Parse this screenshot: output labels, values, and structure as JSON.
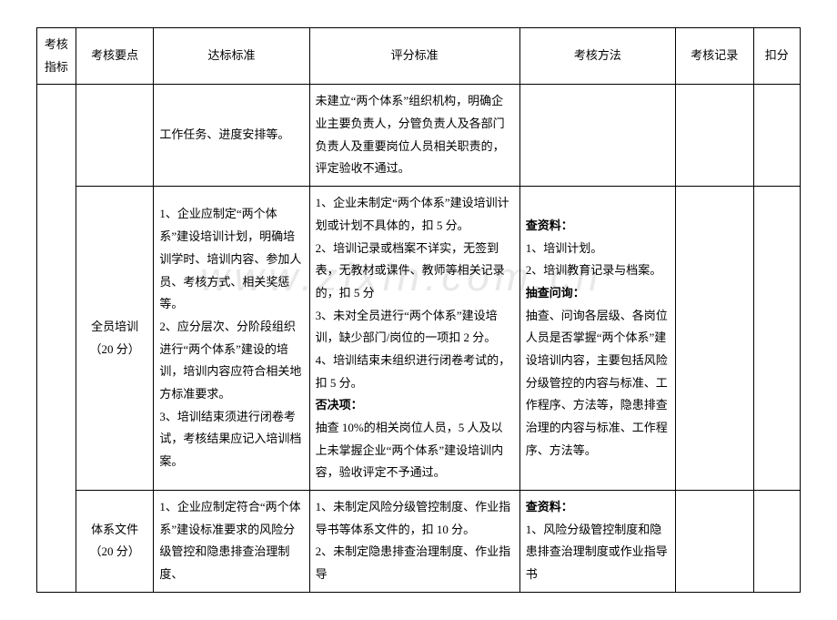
{
  "watermark": "www.zixin.com.cn",
  "columns": {
    "c1": "考核\n指标",
    "c2": "考核要点",
    "c3": "达标标准",
    "c4": "评分标准",
    "c5": "考核方法",
    "c6": "考核记录",
    "c7": "扣分"
  },
  "widths": {
    "c1": "5%",
    "c2": "10%",
    "c3": "20%",
    "c4": "27%",
    "c5": "20%",
    "c6": "10%",
    "c7": "6%"
  },
  "rows": [
    {
      "c2": "",
      "c3": "工作任务、进度安排等。",
      "c4": "未建立“两个体系”组织机构，明确企业主要负责人，分管负责人及各部门负责人及重要岗位人员相关职责的，评定验收不通过。",
      "c5": ""
    },
    {
      "c2": "全员培训\n（20 分）",
      "c3": "1、企业应制定“两个体系”建设培训计划，明确培训学时、培训内容、参加人员、考核方式、相关奖惩等。\n2、应分层次、分阶段组织进行“两个体系”建设的培训，培训内容应符合相关地方标准要求。\n3、培训结束须进行闭卷考试，考核结果应记入培训档案。",
      "c4_p1": "1、企业未制定“两个体系”建设培训计划或计划不具体的，扣 5 分。",
      "c4_p2": "2、培训记录或档案不详实，无签到表，无教材或课件、教师等相关记录的，扣 5 分",
      "c4_p3": "3、未对全员进行“两个体系”建设培训，缺少部门/岗位的一项扣 2 分。",
      "c4_p4": "4、培训结束未组织进行闭卷考试的，扣 5 分。",
      "c4_veto_label": "否决项：",
      "c4_veto": "抽查 10%的相关岗位人员，5 人及以上未掌握企业“两个体系”建设培训内容，验收评定不予通过。",
      "c5_h1": "查资料：",
      "c5_a1": "1、培训计划。",
      "c5_a2": "2、培训教育记录与档案。",
      "c5_h2": "抽查问询：",
      "c5_b1": "抽查、问询各层级、各岗位人员是否掌握“两个体系”建设培训内容，主要包括风险分级管控的内容与标准、工作程序、方法等，隐患排查治理的内容与标准、工作程序、方法等。"
    },
    {
      "c2": "体系文件\n（20 分）",
      "c3": "1、企业应制定符合“两个体系”建设标准要求的风险分级管控和隐患排查治理制度、",
      "c4_p1": "1、未制定风险分级管控制度、作业指导书等体系文件的，扣 10 分。",
      "c4_p2": "2、未制定隐患排查治理制度、作业指导",
      "c5_h1": "查资料：",
      "c5_a1": "1、风险分级管控制度和隐患排查治理制度或作业指导书"
    }
  ],
  "colors": {
    "text": "#000000",
    "border": "#000000",
    "background": "#ffffff",
    "watermark": "#e8e8e8"
  },
  "typography": {
    "body_fontsize_pt": 10,
    "line_height": 1.9,
    "font_family": "SimSun"
  }
}
